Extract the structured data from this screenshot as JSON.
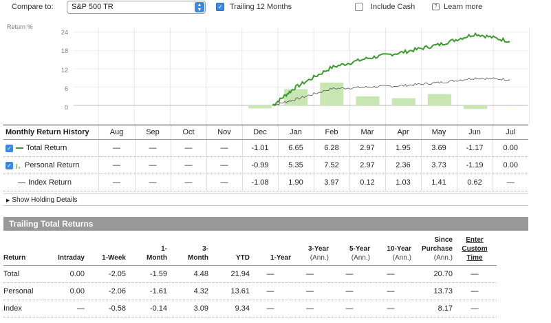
{
  "controls": {
    "compare_label": "Compare to:",
    "compare_value": "S&P 500 TR",
    "trailing_label": "Trailing 12 Months",
    "include_cash_label": "Include Cash",
    "learn_more": "Learn more"
  },
  "chart": {
    "ylabel": "Return %",
    "yticks": [
      "24",
      "18",
      "12",
      "6",
      "0"
    ]
  },
  "chart_data": {
    "type": "line",
    "title": "",
    "ylabel": "Return %",
    "ylim": [
      -2,
      26
    ],
    "categories": [
      "Aug",
      "Sep",
      "Oct",
      "Nov",
      "Dec",
      "Jan",
      "Feb",
      "Mar",
      "Apr",
      "May",
      "Jun",
      "Jul"
    ],
    "monthly_bars": {
      "name": "Personal Return",
      "values": [
        null,
        null,
        null,
        null,
        -0.99,
        5.35,
        7.52,
        2.97,
        2.36,
        3.73,
        -1.19,
        0.0
      ]
    },
    "series": [
      {
        "name": "Total Return",
        "x": [
          "Dec",
          "Jan",
          "Feb",
          "Mar",
          "Apr",
          "May",
          "Jun",
          "Jul"
        ],
        "values": [
          0,
          6.0,
          12.5,
          15.5,
          17.5,
          20.0,
          23.5,
          21.0
        ]
      },
      {
        "name": "Index Return",
        "x": [
          "Dec",
          "Jan",
          "Feb",
          "Mar",
          "Apr",
          "May",
          "Jun",
          "Jul"
        ],
        "values": [
          0,
          2.0,
          5.5,
          6.0,
          6.5,
          7.5,
          9.0,
          8.5
        ]
      }
    ],
    "grid": true
  },
  "monthly": {
    "title": "Monthly Return History",
    "months": [
      "Aug",
      "Sep",
      "Oct",
      "Nov",
      "Dec",
      "Jan",
      "Feb",
      "Mar",
      "Apr",
      "May",
      "Jun",
      "Jul"
    ],
    "rows": [
      {
        "label": "Total Return",
        "values": [
          "—",
          "—",
          "—",
          "—",
          "-1.01",
          "6.65",
          "6.28",
          "2.97",
          "1.95",
          "3.69",
          "-1.17",
          "0.00"
        ]
      },
      {
        "label": "Personal Return",
        "values": [
          "—",
          "—",
          "—",
          "—",
          "-0.99",
          "5.35",
          "7.52",
          "2.97",
          "2.36",
          "3.73",
          "-1.19",
          "0.00"
        ]
      },
      {
        "label": "Index Return",
        "values": [
          "—",
          "—",
          "—",
          "—",
          "-1.08",
          "1.90",
          "3.97",
          "0.12",
          "1.03",
          "1.41",
          "0.62",
          "—"
        ]
      }
    ]
  },
  "holding_details": "Show Holding Details",
  "trailing": {
    "title": "Trailing Total Returns",
    "headers": [
      {
        "l1": "",
        "l2": "",
        "l3": "Return"
      },
      {
        "l1": "",
        "l2": "",
        "l3": "Intraday"
      },
      {
        "l1": "",
        "l2": "",
        "l3": "1-Week"
      },
      {
        "l1": "",
        "l2": "1-",
        "l3": "Month"
      },
      {
        "l1": "",
        "l2": "3-",
        "l3": "Month"
      },
      {
        "l1": "",
        "l2": "",
        "l3": "YTD"
      },
      {
        "l1": "",
        "l2": "",
        "l3": "1-Year"
      },
      {
        "l1": "",
        "l2": "3-Year",
        "l3": "(Ann.)"
      },
      {
        "l1": "",
        "l2": "5-Year",
        "l3": "(Ann.)"
      },
      {
        "l1": "",
        "l2": "10-Year",
        "l3": "(Ann.)"
      },
      {
        "l1": "Since",
        "l2": "Purchase",
        "l3": "(Ann.)"
      },
      {
        "l1": "Enter",
        "l2": "Custom",
        "l3": "Time"
      }
    ],
    "rows": [
      {
        "label": "Total",
        "values": [
          "0.00",
          "-2.05",
          "-1.59",
          "4.48",
          "21.94",
          "—",
          "—",
          "—",
          "—",
          "20.70",
          "—"
        ]
      },
      {
        "label": "Personal",
        "values": [
          "0.00",
          "-2.06",
          "-1.61",
          "4.32",
          "13.61",
          "—",
          "—",
          "—",
          "—",
          "13.73",
          "—"
        ]
      },
      {
        "label": "Index",
        "values": [
          "—",
          "-0.58",
          "-0.14",
          "3.09",
          "9.34",
          "—",
          "—",
          "—",
          "—",
          "8.17",
          "—"
        ]
      }
    ]
  },
  "colors": {
    "accent": "#3b87e6",
    "total_line": "#3d9a2e",
    "bar_fill": "#c8e6b4",
    "index_line": "#555555"
  }
}
